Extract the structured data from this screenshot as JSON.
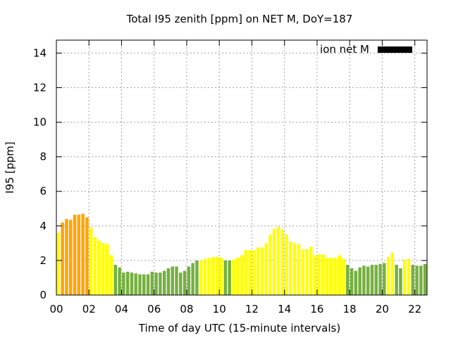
{
  "chart_data": {
    "type": "bar",
    "title": "Total I95 zenith [ppm] on NET M, DoY=187",
    "xlabel": "Time of day UTC (15-minute intervals)",
    "ylabel": "I95 [ppm]",
    "xlim": [
      0,
      22.75
    ],
    "ylim": [
      0,
      14.75
    ],
    "xticks": [
      "00",
      "02",
      "04",
      "06",
      "08",
      "10",
      "12",
      "14",
      "16",
      "18",
      "20",
      "22"
    ],
    "yticks": [
      "0",
      "2",
      "4",
      "6",
      "8",
      "10",
      "12",
      "14"
    ],
    "grid": true,
    "legend": {
      "label": "ion net M",
      "color": "#000000",
      "placement": "top-right"
    },
    "color_classes": {
      "orange": "#ffa500",
      "yellow": "#ffff00",
      "green": "#76b041"
    },
    "interval_hours": 0.25,
    "start_hour": 0.125,
    "values": [
      3.6,
      4.2,
      4.4,
      4.35,
      4.65,
      4.65,
      4.7,
      4.5,
      3.9,
      3.35,
      3.15,
      3.0,
      2.95,
      2.3,
      1.75,
      1.6,
      1.3,
      1.35,
      1.3,
      1.25,
      1.2,
      1.2,
      1.2,
      1.35,
      1.3,
      1.3,
      1.4,
      1.55,
      1.65,
      1.65,
      1.3,
      1.4,
      1.65,
      1.85,
      2.0,
      2.0,
      2.1,
      2.15,
      2.2,
      2.2,
      2.15,
      2.0,
      2.0,
      2.05,
      2.15,
      2.3,
      2.6,
      2.6,
      2.6,
      2.75,
      2.75,
      3.0,
      3.5,
      3.85,
      3.95,
      3.8,
      3.5,
      3.1,
      3.0,
      2.95,
      2.65,
      2.65,
      2.8,
      2.3,
      2.35,
      2.35,
      2.15,
      2.15,
      2.15,
      2.3,
      2.1,
      1.75,
      1.55,
      1.4,
      1.6,
      1.7,
      1.65,
      1.75,
      1.75,
      1.8,
      1.85,
      2.2,
      2.45,
      1.75,
      1.55,
      2.05,
      2.1,
      1.75,
      1.7,
      1.7,
      1.8
    ],
    "classes": [
      "yellow",
      "orange",
      "orange",
      "orange",
      "orange",
      "orange",
      "orange",
      "orange",
      "yellow",
      "yellow",
      "yellow",
      "yellow",
      "yellow",
      "yellow",
      "green",
      "green",
      "green",
      "green",
      "green",
      "green",
      "green",
      "green",
      "green",
      "green",
      "green",
      "green",
      "green",
      "green",
      "green",
      "green",
      "green",
      "green",
      "green",
      "green",
      "green",
      "yellow",
      "yellow",
      "yellow",
      "yellow",
      "yellow",
      "yellow",
      "green",
      "green",
      "yellow",
      "yellow",
      "yellow",
      "yellow",
      "yellow",
      "yellow",
      "yellow",
      "yellow",
      "yellow",
      "yellow",
      "yellow",
      "yellow",
      "yellow",
      "yellow",
      "yellow",
      "yellow",
      "yellow",
      "yellow",
      "yellow",
      "yellow",
      "yellow",
      "yellow",
      "yellow",
      "yellow",
      "yellow",
      "yellow",
      "yellow",
      "yellow",
      "green",
      "green",
      "green",
      "green",
      "green",
      "green",
      "green",
      "green",
      "green",
      "green",
      "yellow",
      "yellow",
      "green",
      "green",
      "yellow",
      "yellow",
      "green",
      "green",
      "green",
      "green"
    ]
  }
}
